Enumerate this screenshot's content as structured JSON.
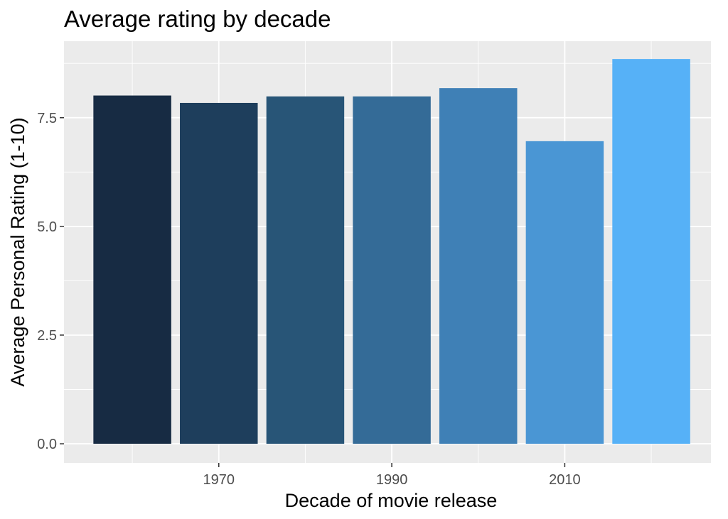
{
  "chart_data": {
    "type": "bar",
    "title": "Average rating by decade",
    "xlabel": "Decade of movie release",
    "ylabel": "Average Personal Rating (1-10)",
    "categories": [
      1960,
      1970,
      1980,
      1990,
      2000,
      2010,
      2020
    ],
    "values": [
      8.01,
      7.84,
      7.99,
      7.99,
      8.18,
      6.96,
      8.85
    ],
    "colors": [
      "#172B43",
      "#1E3E5C",
      "#285577",
      "#346B97",
      "#3F80B6",
      "#4A96D4",
      "#56B1F7"
    ],
    "x_ticks": [
      1970,
      1990,
      2010
    ],
    "y_ticks": [
      "0.0",
      "2.5",
      "5.0",
      "7.5"
    ],
    "ylim": [
      -0.44,
      9.26
    ],
    "xlim": [
      1952.1,
      2026.9
    ],
    "grid": true,
    "legend": "none",
    "panel_background": "#EBEBEB"
  }
}
